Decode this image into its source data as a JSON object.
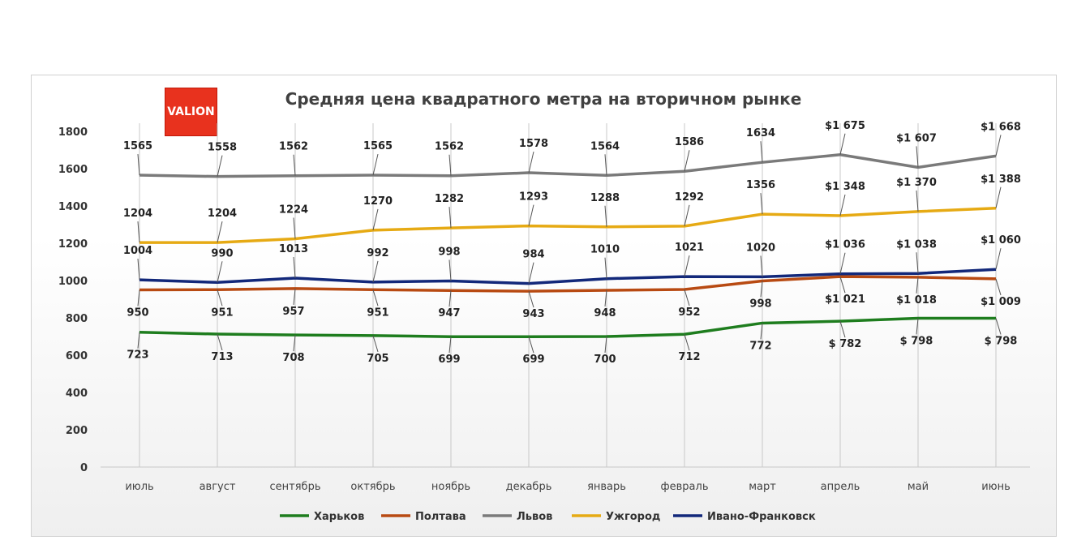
{
  "chart_data": {
    "type": "line",
    "title": "Средняя цена квадратного  метра на вторичном  рынке",
    "logo": "VALION",
    "categories": [
      "июль",
      "август",
      "сентябрь",
      "октябрь",
      "ноябрь",
      "декабрь",
      "январь",
      "февраль",
      "март",
      "апрель",
      "май",
      "июнь"
    ],
    "ylim": [
      0,
      1800
    ],
    "yticks": [
      0,
      200,
      400,
      600,
      800,
      1000,
      1200,
      1400,
      1600,
      1800
    ],
    "grid": "vertical category lines",
    "legend_position": "bottom",
    "series": [
      {
        "name": "Харьков",
        "color": "#1e7d1e",
        "label_side": "below",
        "values": [
          723,
          713,
          708,
          705,
          699,
          699,
          700,
          712,
          772,
          782,
          798,
          798
        ],
        "labels": [
          "723",
          "713",
          "708",
          "705",
          "699",
          "699",
          "700",
          "712",
          "772",
          "$ 782",
          "$ 798",
          "$ 798"
        ]
      },
      {
        "name": "Полтава",
        "color": "#b84a12",
        "label_side": "below",
        "values": [
          950,
          951,
          957,
          951,
          947,
          943,
          948,
          952,
          998,
          1021,
          1018,
          1009
        ],
        "labels": [
          "950",
          "951",
          "957",
          "951",
          "947",
          "943",
          "948",
          "952",
          "998",
          "$1 021",
          "$1 018",
          "$1 009"
        ]
      },
      {
        "name": "Львов",
        "color": "#7a7a7a",
        "label_side": "above",
        "values": [
          1565,
          1558,
          1562,
          1565,
          1562,
          1578,
          1564,
          1586,
          1634,
          1675,
          1607,
          1668
        ],
        "labels": [
          "1565",
          "1558",
          "1562",
          "1565",
          "1562",
          "1578",
          "1564",
          "1586",
          "1634",
          "$1 675",
          "$1 607",
          "$1 668"
        ]
      },
      {
        "name": "Ужгород",
        "color": "#e6aa14",
        "label_side": "above",
        "values": [
          1204,
          1204,
          1224,
          1270,
          1282,
          1293,
          1288,
          1292,
          1356,
          1348,
          1370,
          1388
        ],
        "labels": [
          "1204",
          "1204",
          "1224",
          "1270",
          "1282",
          "1293",
          "1288",
          "1292",
          "1356",
          "$1 348",
          "$1 370",
          "$1 388"
        ]
      },
      {
        "name": "Ивано-Франковск",
        "color": "#12287a",
        "label_side": "above",
        "values": [
          1004,
          990,
          1013,
          992,
          998,
          984,
          1010,
          1021,
          1020,
          1036,
          1038,
          1060
        ],
        "labels": [
          "1004",
          "990",
          "1013",
          "992",
          "998",
          "984",
          "1010",
          "1021",
          "1020",
          "$1 036",
          "$1 038",
          "$1 060"
        ]
      }
    ]
  }
}
